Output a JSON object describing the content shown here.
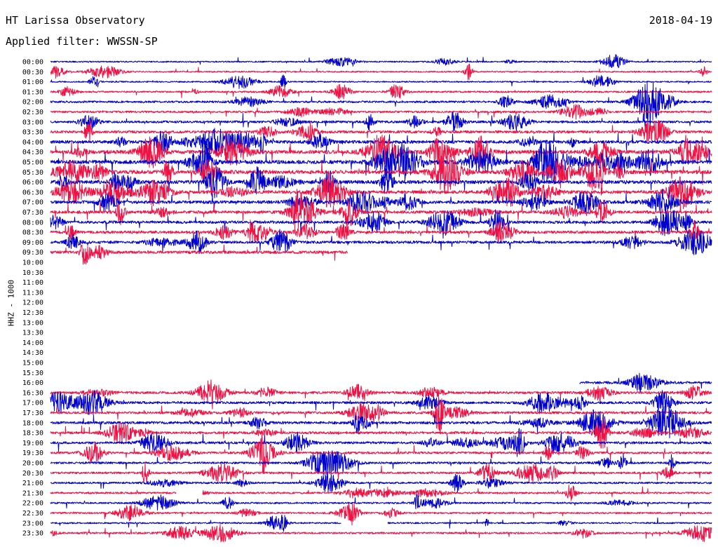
{
  "header": {
    "title": "HT Larissa Observatory",
    "filter": "Applied filter: WWSSN-SP",
    "date": "2018-04-19"
  },
  "channel": {
    "label": "HHZ - 1000"
  },
  "colors": {
    "trace_a": "#0000cc",
    "trace_b": "#ee1144",
    "text": "#000000",
    "background": "#ffffff"
  },
  "chart_data": {
    "type": "line",
    "title": "",
    "xlabel": "",
    "ylabel": "HHZ - 1000",
    "row_labels": [
      "00:00",
      "00:30",
      "01:00",
      "01:30",
      "02:00",
      "02:30",
      "03:00",
      "03:30",
      "04:00",
      "04:30",
      "05:00",
      "05:30",
      "06:00",
      "06:30",
      "07:00",
      "07:30",
      "08:00",
      "08:30",
      "09:00",
      "09:30",
      "10:00",
      "10:30",
      "11:00",
      "11:30",
      "12:00",
      "12:30",
      "13:00",
      "13:30",
      "14:00",
      "14:30",
      "15:00",
      "15:30",
      "16:00",
      "16:30",
      "17:00",
      "17:30",
      "18:00",
      "18:30",
      "19:00",
      "19:30",
      "20:00",
      "20:30",
      "21:00",
      "21:30",
      "22:00",
      "22:30",
      "23:00",
      "23:30"
    ],
    "row_minutes": 30,
    "series": [
      {
        "color_key": "trace_a"
      },
      {
        "color_key": "trace_b"
      }
    ],
    "row_activity": [
      0.15,
      0.15,
      0.15,
      0.25,
      0.35,
      0.3,
      0.4,
      0.5,
      0.65,
      0.8,
      0.85,
      0.85,
      0.75,
      0.7,
      0.65,
      0.6,
      0.55,
      0.55,
      0.5,
      0.6,
      0,
      0,
      0,
      0,
      0,
      0,
      0,
      0,
      0,
      0,
      0,
      0,
      0.45,
      0.45,
      0.45,
      0.45,
      0.5,
      0.45,
      0.45,
      0.4,
      0.35,
      0.35,
      0.3,
      0.3,
      0.25,
      0.25,
      0.2,
      0.3
    ],
    "row_coverage": [
      [
        0,
        1
      ],
      [
        0,
        1
      ],
      [
        0,
        1
      ],
      [
        0,
        1
      ],
      [
        0,
        1
      ],
      [
        0,
        1
      ],
      [
        0,
        1
      ],
      [
        0,
        1
      ],
      [
        0,
        1
      ],
      [
        0,
        1
      ],
      [
        0,
        1
      ],
      [
        0,
        1
      ],
      [
        0,
        1
      ],
      [
        0,
        1
      ],
      [
        0,
        1
      ],
      [
        0,
        1
      ],
      [
        0,
        1
      ],
      [
        0,
        1
      ],
      [
        0,
        1
      ],
      [
        0,
        0.45
      ],
      [
        0,
        0
      ],
      [
        0,
        0
      ],
      [
        0,
        0
      ],
      [
        0,
        0
      ],
      [
        0,
        0
      ],
      [
        0,
        0
      ],
      [
        0,
        0
      ],
      [
        0,
        0
      ],
      [
        0,
        0
      ],
      [
        0,
        0
      ],
      [
        0,
        0
      ],
      [
        0,
        0
      ],
      [
        0.8,
        1
      ],
      [
        0,
        1
      ],
      [
        0,
        1
      ],
      [
        0,
        1
      ],
      [
        0,
        1
      ],
      [
        0,
        1
      ],
      [
        0,
        1
      ],
      [
        0,
        1
      ],
      [
        0,
        1
      ],
      [
        0,
        1
      ],
      [
        0,
        1
      ],
      [
        0,
        1
      ],
      [
        0,
        1
      ],
      [
        0,
        1
      ],
      [
        0,
        1
      ],
      [
        0,
        1
      ]
    ],
    "row_gaps": [
      [],
      [],
      [],
      [],
      [],
      [],
      [],
      [],
      [],
      [],
      [],
      [],
      [],
      [],
      [],
      [],
      [],
      [],
      [],
      [],
      [],
      [],
      [],
      [],
      [],
      [],
      [],
      [],
      [],
      [],
      [],
      [],
      [],
      [],
      [],
      [],
      [],
      [],
      [],
      [],
      [],
      [],
      [],
      [
        [
          0.19,
          0.23
        ]
      ],
      [],
      [],
      [
        [
          0.44,
          0.51
        ]
      ],
      []
    ]
  }
}
